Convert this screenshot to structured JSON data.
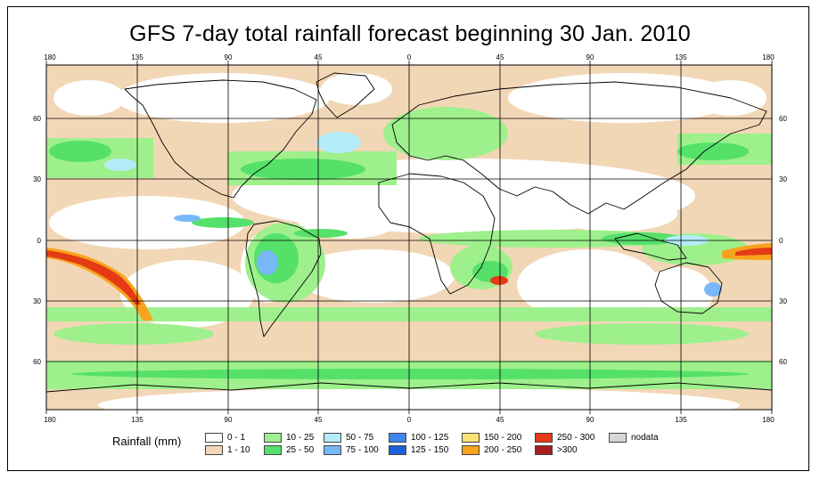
{
  "title": "GFS 7-day total rainfall forecast beginning 30 Jan. 2010",
  "longitude_labels": [
    "180",
    "135",
    "90",
    "45",
    "0",
    "45",
    "90",
    "135",
    "180"
  ],
  "latitude_labels": [
    "60",
    "30",
    "0",
    "30",
    "60"
  ],
  "legend": {
    "title": "Rainfall (mm)",
    "classes": [
      {
        "label": "0 - 1",
        "color": "#ffffff"
      },
      {
        "label": "1 - 10",
        "color": "#f2d7b6"
      },
      {
        "label": "10 - 25",
        "color": "#9ef08c"
      },
      {
        "label": "25 - 50",
        "color": "#55e06a"
      },
      {
        "label": "50 - 75",
        "color": "#b4ecf8"
      },
      {
        "label": "75 - 100",
        "color": "#78b8f6"
      },
      {
        "label": "100 - 125",
        "color": "#3d86ee"
      },
      {
        "label": "125 - 150",
        "color": "#1d5fd8"
      },
      {
        "label": "150 - 200",
        "color": "#ffe277"
      },
      {
        "label": "200 - 250",
        "color": "#f8a31c"
      },
      {
        "label": "250 - 300",
        "color": "#e53a16"
      },
      {
        "label": ">300",
        "color": "#a51e1e"
      },
      {
        "label": "nodata",
        "color": "#d6d6d6"
      }
    ]
  }
}
